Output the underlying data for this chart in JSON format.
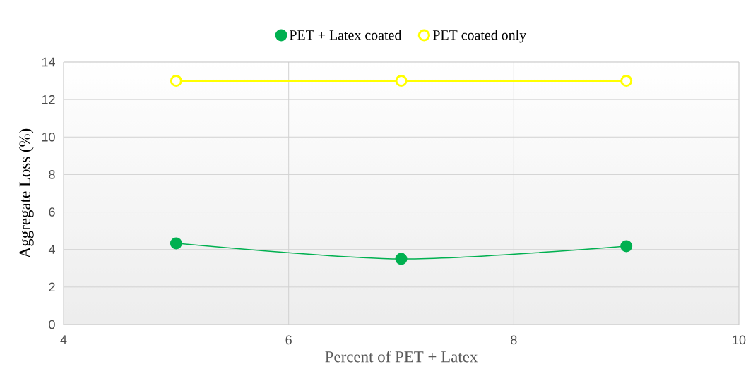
{
  "chart_data": {
    "type": "line",
    "xlabel": "Percent of PET + Latex",
    "ylabel": "Aggregate Loss (%)",
    "x": [
      5,
      7,
      9
    ],
    "series": [
      {
        "name": "PET + Latex coated",
        "color": "#00b050",
        "values": [
          4.33,
          3.5,
          4.18
        ]
      },
      {
        "name": "PET coated only",
        "color": "#ffff00",
        "values": [
          13,
          13,
          13
        ]
      }
    ],
    "xlim": [
      4,
      10
    ],
    "xticks": [
      4,
      6,
      8,
      10
    ],
    "ylim": [
      0,
      14
    ],
    "yticks": [
      0,
      2,
      4,
      6,
      8,
      10,
      12,
      14
    ],
    "grid": true,
    "legend": "top",
    "marker": "circle",
    "line_style": "solid"
  }
}
